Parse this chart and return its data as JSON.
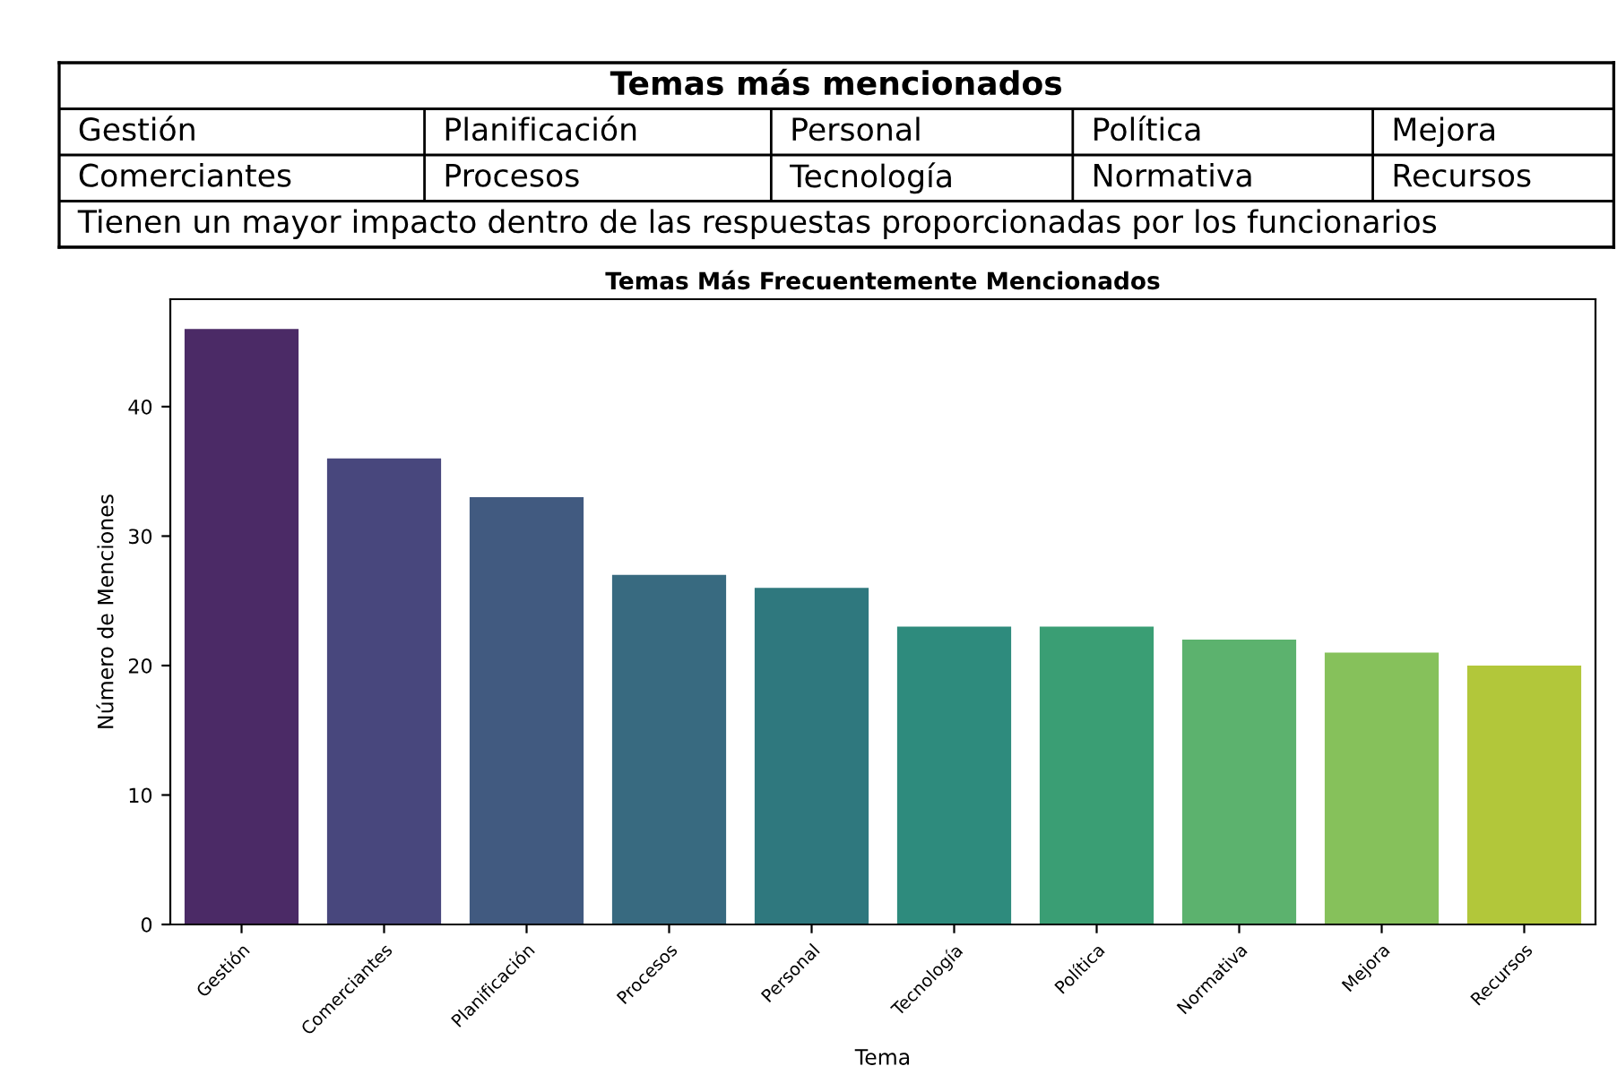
{
  "chart_data": [
    {
      "type": "other",
      "title": "Temas más mencionados",
      "annotations": [
        "Gestión",
        "Planificación",
        "Personal",
        "Política",
        "Mejora",
        "Comerciantes",
        "Procesos",
        "Tecnología",
        "Normativa",
        "Recursos",
        "Tienen un mayor impacto dentro de las respuestas proporcionadas por los funcionarios"
      ]
    },
    {
      "type": "bar",
      "title": "Temas Más Frecuentemente Mencionados",
      "xlabel": "Tema",
      "ylabel": "Número de Menciones",
      "categories": [
        "Gestión",
        "Comerciantes",
        "Planificación",
        "Procesos",
        "Personal",
        "Tecnología",
        "Política",
        "Normativa",
        "Mejora",
        "Recursos"
      ],
      "values": [
        46,
        36,
        33,
        27,
        26,
        23,
        23,
        22,
        21,
        20
      ],
      "colors": [
        "#4b2a66",
        "#48477d",
        "#415a80",
        "#386a80",
        "#2f787e",
        "#2e8b7d",
        "#3a9e74",
        "#5cb26e",
        "#86c15b",
        "#b2c73a"
      ],
      "ylim": [
        0,
        48.3
      ],
      "yticks": [
        0,
        10,
        20,
        30,
        40
      ],
      "grid": false
    }
  ]
}
